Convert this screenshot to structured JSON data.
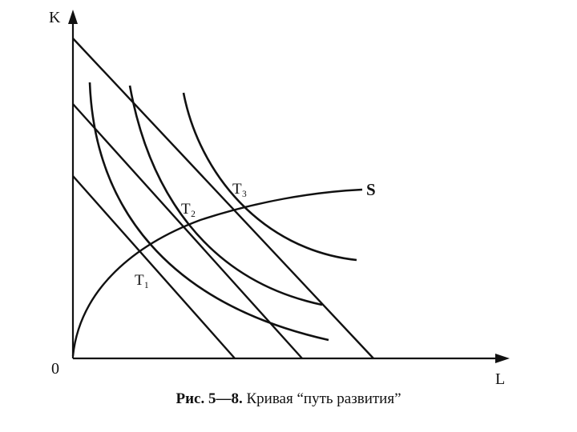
{
  "axes": {
    "y_label": "K",
    "x_label": "L",
    "origin_label": "0"
  },
  "points": {
    "t1": "T₁",
    "t2": "T₂",
    "t3": "T₃"
  },
  "curve_label": "S",
  "caption": {
    "number": "Рис. 5—8.",
    "text": "Кривая “путь развития”"
  }
}
